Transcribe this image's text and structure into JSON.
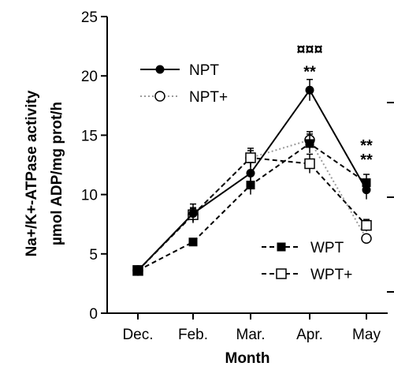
{
  "chart_data": {
    "type": "line",
    "xlabel": "Month",
    "ylabel_line1": "Na+/K+-ATPase activity",
    "ylabel_line2": "µmol ADP/mg prot/h",
    "ylim": [
      0,
      25
    ],
    "yticks": [
      "0",
      "5",
      "10",
      "15",
      "20",
      "25"
    ],
    "categories": [
      "Dec.",
      "Feb.",
      "Mar.",
      "Apr.",
      "May"
    ],
    "grid": false,
    "legend": [
      "top-left",
      "bottom-right"
    ],
    "series": [
      {
        "name": "NPT",
        "marker": "filled-circle",
        "line": "solid",
        "color": "#000000",
        "values": [
          3.6,
          8.4,
          11.8,
          18.8,
          10.4
        ],
        "errors": [
          0.3,
          0.8,
          0.9,
          0.9,
          0.8
        ]
      },
      {
        "name": "NPT+",
        "marker": "open-circle",
        "line": "dotted",
        "color": "#9a9a9a",
        "values": [
          3.6,
          8.3,
          13.1,
          14.6,
          6.3
        ],
        "errors": [
          0.3,
          0.6,
          0.6,
          0.7,
          0.3
        ]
      },
      {
        "name": "WPT",
        "marker": "filled-square",
        "line": "dashed",
        "color": "#000000",
        "values": [
          3.6,
          6.0,
          10.8,
          14.3,
          11.0
        ],
        "errors": [
          0.3,
          0.3,
          0.8,
          0.8,
          0.7
        ]
      },
      {
        "name": "WPT+",
        "marker": "open-square",
        "line": "dashed",
        "color": "#000000",
        "values": [
          3.6,
          8.3,
          13.1,
          12.6,
          7.4
        ],
        "errors": [
          0.3,
          0.5,
          0.8,
          0.8,
          0.5
        ]
      }
    ],
    "annotations": [
      {
        "category": "Apr.",
        "y": 21.8,
        "text": "¤¤¤"
      },
      {
        "category": "Apr.",
        "y": 19.9,
        "text": "**"
      },
      {
        "category": "May",
        "y": 13.7,
        "text": "**"
      },
      {
        "category": "May",
        "y": 12.5,
        "text": "**"
      }
    ]
  }
}
